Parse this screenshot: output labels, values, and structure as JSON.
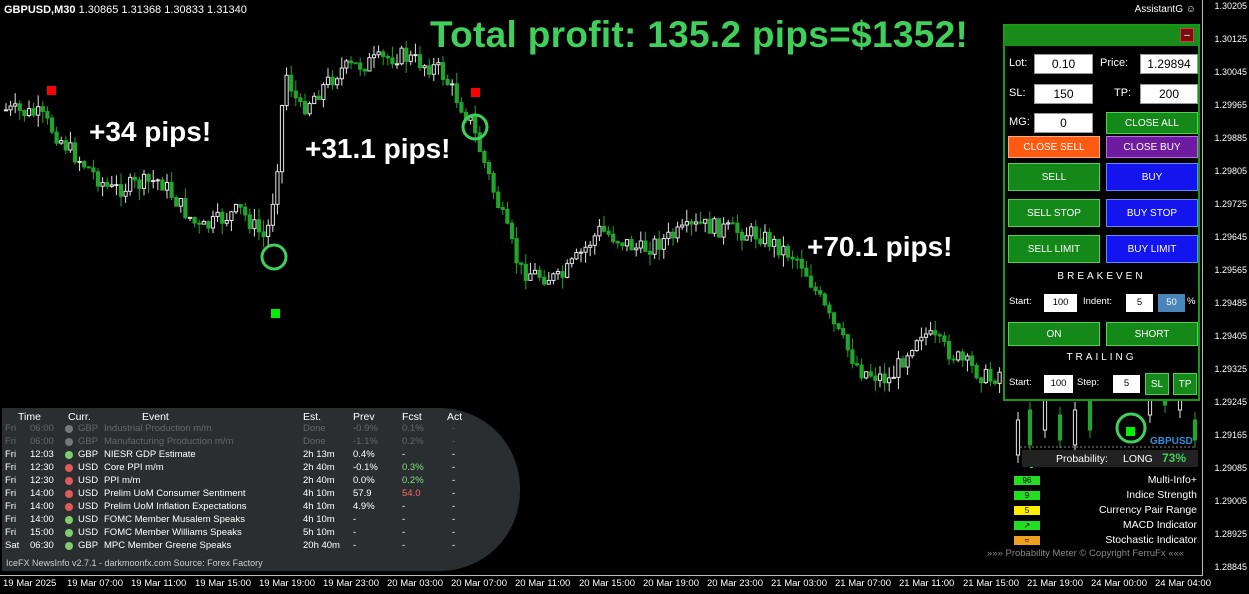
{
  "header": {
    "symbol": "GBPUSD,M30",
    "ohlc": "1.30865 1.31368 1.30833 1.31340"
  },
  "account": {
    "name": "AssistantG",
    "icon": "smiley-icon"
  },
  "banner": "Total profit: 135.2 pips=$1352!",
  "annotations": [
    "+34 pips!",
    "+31.1 pips!",
    "+70.1 pips!"
  ],
  "y_ticks": [
    "1.30205",
    "1.30125",
    "1.30045",
    "1.29965",
    "1.29885",
    "1.29805",
    "1.29725",
    "1.29645",
    "1.29565",
    "1.29485",
    "1.29405",
    "1.29325",
    "1.29245",
    "1.29165",
    "1.29085",
    "1.29005",
    "1.28925",
    "1.28845"
  ],
  "x_ticks": [
    "19 Mar 2025",
    "19 Mar 07:00",
    "19 Mar 11:00",
    "19 Mar 15:00",
    "19 Mar 19:00",
    "19 Mar 23:00",
    "20 Mar 03:00",
    "20 Mar 07:00",
    "20 Mar 11:00",
    "20 Mar 15:00",
    "20 Mar 19:00",
    "20 Mar 23:00",
    "21 Mar 03:00",
    "21 Mar 07:00",
    "21 Mar 11:00",
    "21 Mar 15:00",
    "21 Mar 19:00",
    "24 Mar 00:00",
    "24 Mar 04:00"
  ],
  "panel": {
    "minimize_label": "–",
    "lot_label": "Lot:",
    "lot": "0.10",
    "price_label": "Price:",
    "price": "1.29894",
    "sl_label": "SL:",
    "sl": "150",
    "tp_label": "TP:",
    "tp": "200",
    "mg_label": "MG:",
    "mg": "0",
    "close_all": "CLOSE ALL",
    "close_sell": "CLOSE SELL",
    "close_buy": "CLOSE BUY",
    "sell": "SELL",
    "buy": "BUY",
    "sell_stop": "SELL STOP",
    "buy_stop": "BUY STOP",
    "sell_limit": "SELL LIMIT",
    "buy_limit": "BUY LIMIT",
    "breakeven_title": "BREAKEVEN",
    "be_start_label": "Start:",
    "be_start": "100",
    "be_indent_label": "Indent:",
    "be_indent": "5",
    "be_pct_value": "50",
    "be_pct_sign": "%",
    "on": "ON",
    "short": "SHORT",
    "trailing_title": "TRAILING",
    "tr_start_label": "Start:",
    "tr_start": "100",
    "tr_step_label": "Step:",
    "tr_step": "5",
    "sl_btn": "SL",
    "tp_btn": "TP"
  },
  "news": {
    "headers": {
      "time": "Time",
      "curr": "Curr.",
      "event": "Event",
      "est": "Est.",
      "prev": "Prev",
      "fcst": "Fcst",
      "act": "Act"
    },
    "rows": [
      {
        "day": "Fri",
        "time": "06:00",
        "curr": "GBP",
        "event": "Industrial Production m/m",
        "est": "Done",
        "prev": "-0.9%",
        "fcst": "0.1%",
        "act": "-",
        "past": true,
        "dot": "#777777",
        "fcst_color": ""
      },
      {
        "day": "Fri",
        "time": "06:00",
        "curr": "GBP",
        "event": "Manufacturing Production m/m",
        "est": "Done",
        "prev": "-1.1%",
        "fcst": "0.2%",
        "act": "-",
        "past": true,
        "dot": "#777777",
        "fcst_color": ""
      },
      {
        "day": "Fri",
        "time": "12:03",
        "curr": "GBP",
        "event": "NIESR GDP Estimate",
        "est": "2h 13m",
        "prev": "0.4%",
        "fcst": "-",
        "act": "-",
        "past": false,
        "dot": "#7ccf6c",
        "fcst_color": ""
      },
      {
        "day": "Fri",
        "time": "12:30",
        "curr": "USD",
        "event": "Core PPI m/m",
        "est": "2h 40m",
        "prev": "-0.1%",
        "fcst": "0.3%",
        "act": "-",
        "past": false,
        "dot": "#e05a5a",
        "fcst_color": "#7ee07e"
      },
      {
        "day": "Fri",
        "time": "12:30",
        "curr": "USD",
        "event": "PPI m/m",
        "est": "2h 40m",
        "prev": "0.0%",
        "fcst": "0.2%",
        "act": "-",
        "past": false,
        "dot": "#e05a5a",
        "fcst_color": "#7ee07e"
      },
      {
        "day": "Fri",
        "time": "14:00",
        "curr": "USD",
        "event": "Prelim UoM Consumer Sentiment",
        "est": "4h 10m",
        "prev": "57.9",
        "fcst": "54.0",
        "act": "-",
        "past": false,
        "dot": "#e05a5a",
        "fcst_color": "#ff6a6a"
      },
      {
        "day": "Fri",
        "time": "14:00",
        "curr": "USD",
        "event": "Prelim UoM Inflation Expectations",
        "est": "4h 10m",
        "prev": "4.9%",
        "fcst": "-",
        "act": "-",
        "past": false,
        "dot": "#e05a5a",
        "fcst_color": ""
      },
      {
        "day": "Fri",
        "time": "14:00",
        "curr": "USD",
        "event": "FOMC Member Musalem Speaks",
        "est": "4h 10m",
        "prev": "-",
        "fcst": "-",
        "act": "-",
        "past": false,
        "dot": "#7ccf6c",
        "fcst_color": ""
      },
      {
        "day": "Fri",
        "time": "15:00",
        "curr": "USD",
        "event": "FOMC Member Williams Speaks",
        "est": "5h 10m",
        "prev": "-",
        "fcst": "-",
        "act": "-",
        "past": false,
        "dot": "#7ccf6c",
        "fcst_color": ""
      },
      {
        "day": "Sat",
        "time": "06:30",
        "curr": "GBP",
        "event": "MPC Member Greene Speaks",
        "est": "20h 40m",
        "prev": "-",
        "fcst": "-",
        "act": "-",
        "past": false,
        "dot": "#7ccf6c",
        "fcst_color": ""
      }
    ],
    "footer": "IceFX NewsInfo v2.7.1  -  darkmoonfx.com          Source: Forex Factory"
  },
  "probability": {
    "symbol": "GBPUSD",
    "label": "Probability:",
    "direction": "LONG",
    "value": "73%",
    "indicators": [
      {
        "name": "Multi-Info+",
        "box": "96",
        "color": "#22dd22"
      },
      {
        "name": "Indice Strength",
        "box": "9",
        "color": "#22dd22"
      },
      {
        "name": "Currency Pair Range",
        "box": "5",
        "color": "#ffee00"
      },
      {
        "name": "MACD Indicator",
        "box": "↗",
        "color": "#22dd22"
      },
      {
        "name": "Stochastic Indicator",
        "box": "≈",
        "color": "#f0a020"
      }
    ],
    "copyright": "»»»  Probability Meter © Copyright FerruFx  «««"
  },
  "colors": {
    "bull": "#e6e6e6",
    "bear": "#21a52a",
    "circle": "#3fcf5a",
    "sell_signal": "#ff0000",
    "buy_signal": "#00ee00"
  }
}
